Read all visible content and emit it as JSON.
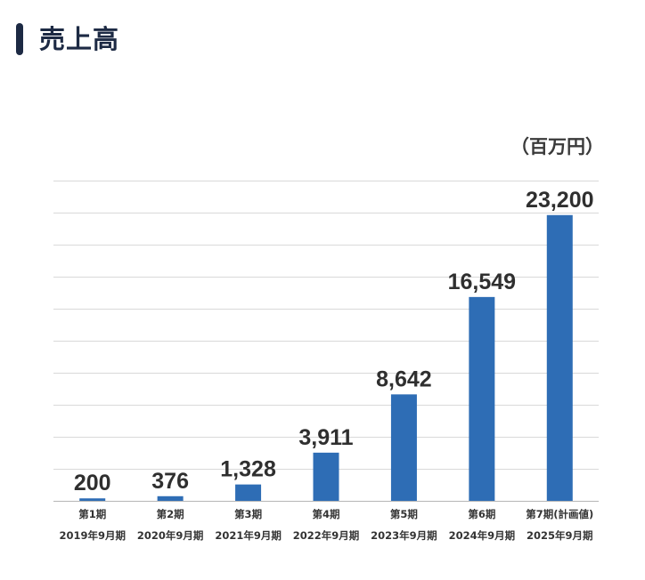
{
  "header": {
    "title": "売上高"
  },
  "unit_label": "（百万円）",
  "colors": {
    "bar": "#2e6db5",
    "title_accent": "#1d2a44",
    "grid": "#d9d9d9"
  },
  "chart_data": {
    "type": "bar",
    "title": "売上高",
    "unit": "百万円",
    "categories": [
      "第1期",
      "第2期",
      "第3期",
      "第4期",
      "第5期",
      "第6期",
      "第7期(計画値)"
    ],
    "sub_categories": [
      "2019年9月期",
      "2020年9月期",
      "2021年9月期",
      "2022年9月期",
      "2023年9月期",
      "2024年9月期",
      "2025年9月期"
    ],
    "values": [
      200,
      376,
      1328,
      3911,
      8642,
      16549,
      23200
    ],
    "value_labels": [
      "200",
      "376",
      "1,328",
      "3,911",
      "8,642",
      "16,549",
      "23,200"
    ],
    "ylim": [
      0,
      26000
    ],
    "grid": true
  }
}
